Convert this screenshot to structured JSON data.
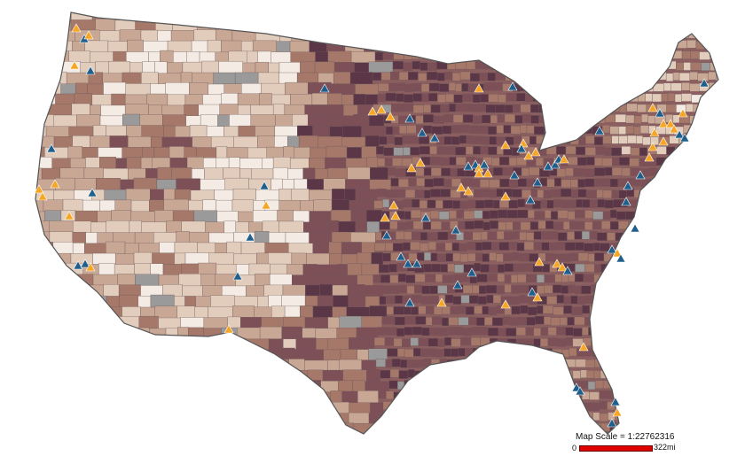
{
  "map": {
    "palette": [
      "#f4ece4",
      "#e2cdbd",
      "#c9a795",
      "#a5786a",
      "#7d5058",
      "#5b3647"
    ],
    "no_data_color": "#9a9a9a",
    "marker_colors": {
      "orange": "#f5a623",
      "blue": "#1f5f8b"
    },
    "marker_shape": "triangle-icon"
  },
  "scale": {
    "title": "Map Scale = 1:22762316",
    "zero": "0",
    "end": "322mi"
  }
}
